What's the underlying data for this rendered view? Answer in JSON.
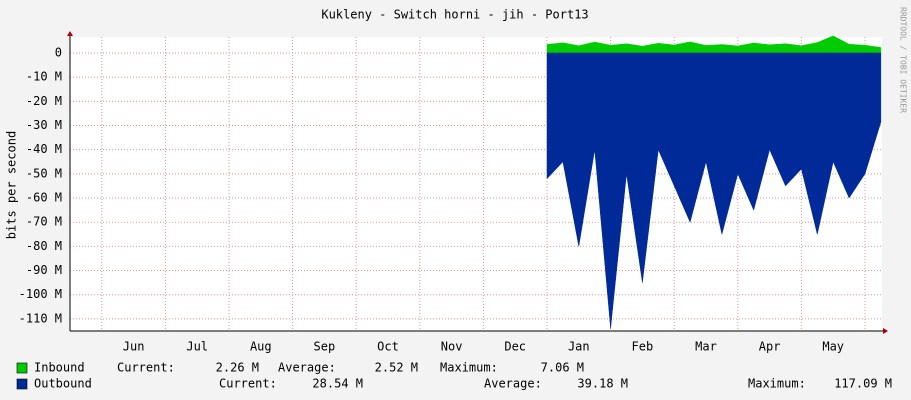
{
  "chart_data": {
    "type": "area",
    "title": "Kukleny - Switch horni - jih - Port13",
    "y_label": "bits per second",
    "watermark": "RRDTOOL / TOBI OETIKER",
    "categories": [
      null,
      null,
      null,
      null,
      "Jun",
      null,
      null,
      null,
      "Jul",
      null,
      null,
      null,
      "Aug",
      null,
      null,
      null,
      "Sep",
      null,
      null,
      null,
      "Oct",
      null,
      null,
      null,
      "Nov",
      null,
      null,
      null,
      "Dec",
      null,
      null,
      null,
      "Jan",
      null,
      null,
      null,
      "Feb",
      null,
      null,
      null,
      "Mar",
      null,
      null,
      null,
      "Apr",
      null,
      null,
      null,
      "May",
      null,
      null,
      null
    ],
    "ylim": [
      -115000000,
      6600000
    ],
    "yticks": [
      {
        "value": 0,
        "label": "0"
      },
      {
        "value": -10000000,
        "label": "-10 M"
      },
      {
        "value": -20000000,
        "label": "-20 M"
      },
      {
        "value": -30000000,
        "label": "-30 M"
      },
      {
        "value": -40000000,
        "label": "-40 M"
      },
      {
        "value": -50000000,
        "label": "-50 M"
      },
      {
        "value": -60000000,
        "label": "-60 M"
      },
      {
        "value": -70000000,
        "label": "-70 M"
      },
      {
        "value": -80000000,
        "label": "-80 M"
      },
      {
        "value": -90000000,
        "label": "-90 M"
      },
      {
        "value": -100000000,
        "label": "-100 M"
      },
      {
        "value": -110000000,
        "label": "-110 M"
      }
    ],
    "grid": true,
    "stat_labels": {
      "current": "Current:",
      "average": "Average:",
      "maximum": "Maximum:"
    },
    "series": [
      {
        "name": "Inbound",
        "color": "#00cc00",
        "values": [
          null,
          null,
          null,
          null,
          null,
          null,
          null,
          null,
          null,
          null,
          null,
          null,
          null,
          null,
          null,
          null,
          null,
          null,
          null,
          null,
          null,
          null,
          null,
          null,
          null,
          null,
          null,
          null,
          null,
          null,
          3500000,
          4200000,
          3000000,
          4500000,
          3200000,
          3800000,
          2800000,
          4000000,
          3300000,
          4600000,
          3100000,
          3500000,
          2900000,
          4100000,
          3400000,
          3800000,
          3000000,
          4300000,
          7060000,
          3600000,
          3200000,
          2260000
        ],
        "current": {
          "value": 2260000,
          "label": "2.26 M"
        },
        "average": {
          "value": 2520000,
          "label": "2.52 M"
        },
        "maximum": {
          "value": 7060000,
          "label": "7.06 M"
        }
      },
      {
        "name": "Outbound",
        "color": "#002a97",
        "values": [
          null,
          null,
          null,
          null,
          null,
          null,
          null,
          null,
          null,
          null,
          null,
          null,
          null,
          null,
          null,
          null,
          null,
          null,
          null,
          null,
          null,
          null,
          null,
          null,
          null,
          null,
          null,
          null,
          null,
          null,
          -52000000,
          -45000000,
          -80000000,
          -40000000,
          -114000000,
          -50000000,
          -95000000,
          -40000000,
          -55000000,
          -70000000,
          -45000000,
          -75000000,
          -50000000,
          -65000000,
          -40000000,
          -55000000,
          -48000000,
          -75000000,
          -45000000,
          -60000000,
          -50000000,
          -28540000
        ],
        "current": {
          "value": 28540000,
          "label": "28.54 M"
        },
        "average": {
          "value": 39180000,
          "label": "39.18 M"
        },
        "maximum": {
          "value": 117090000,
          "label": "117.09 M"
        }
      }
    ]
  }
}
